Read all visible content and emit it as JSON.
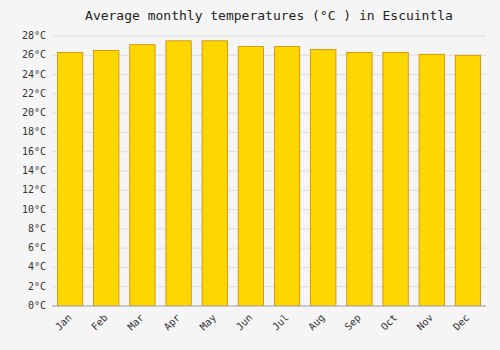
{
  "chart_data": {
    "type": "bar",
    "title": "Average monthly temperatures (°C ) in Escuintla",
    "categories": [
      "Jan",
      "Feb",
      "Mar",
      "Apr",
      "May",
      "Jun",
      "Jul",
      "Aug",
      "Sep",
      "Oct",
      "Nov",
      "Dec"
    ],
    "values": [
      26.3,
      26.5,
      27.1,
      27.5,
      27.5,
      26.9,
      26.9,
      26.6,
      26.3,
      26.3,
      26.1,
      26.0
    ],
    "color": "#FFD700",
    "ylim": [
      0,
      28
    ],
    "yticks": [
      {
        "value": 0,
        "label": "0°C"
      },
      {
        "value": 2,
        "label": "2°C"
      },
      {
        "value": 4,
        "label": "4°C"
      },
      {
        "value": 6,
        "label": "6°C"
      },
      {
        "value": 8,
        "label": "8°C"
      },
      {
        "value": 10,
        "label": "10°C"
      },
      {
        "value": 12,
        "label": "12°C"
      },
      {
        "value": 14,
        "label": "14°C"
      },
      {
        "value": 16,
        "label": "16°C"
      },
      {
        "value": 18,
        "label": "18°C"
      },
      {
        "value": 20,
        "label": "20°C"
      },
      {
        "value": 22,
        "label": "22°C"
      },
      {
        "value": 24,
        "label": "24°C"
      },
      {
        "value": 26,
        "label": "26°C"
      },
      {
        "value": 28,
        "label": "28°C"
      }
    ],
    "grid": true
  }
}
